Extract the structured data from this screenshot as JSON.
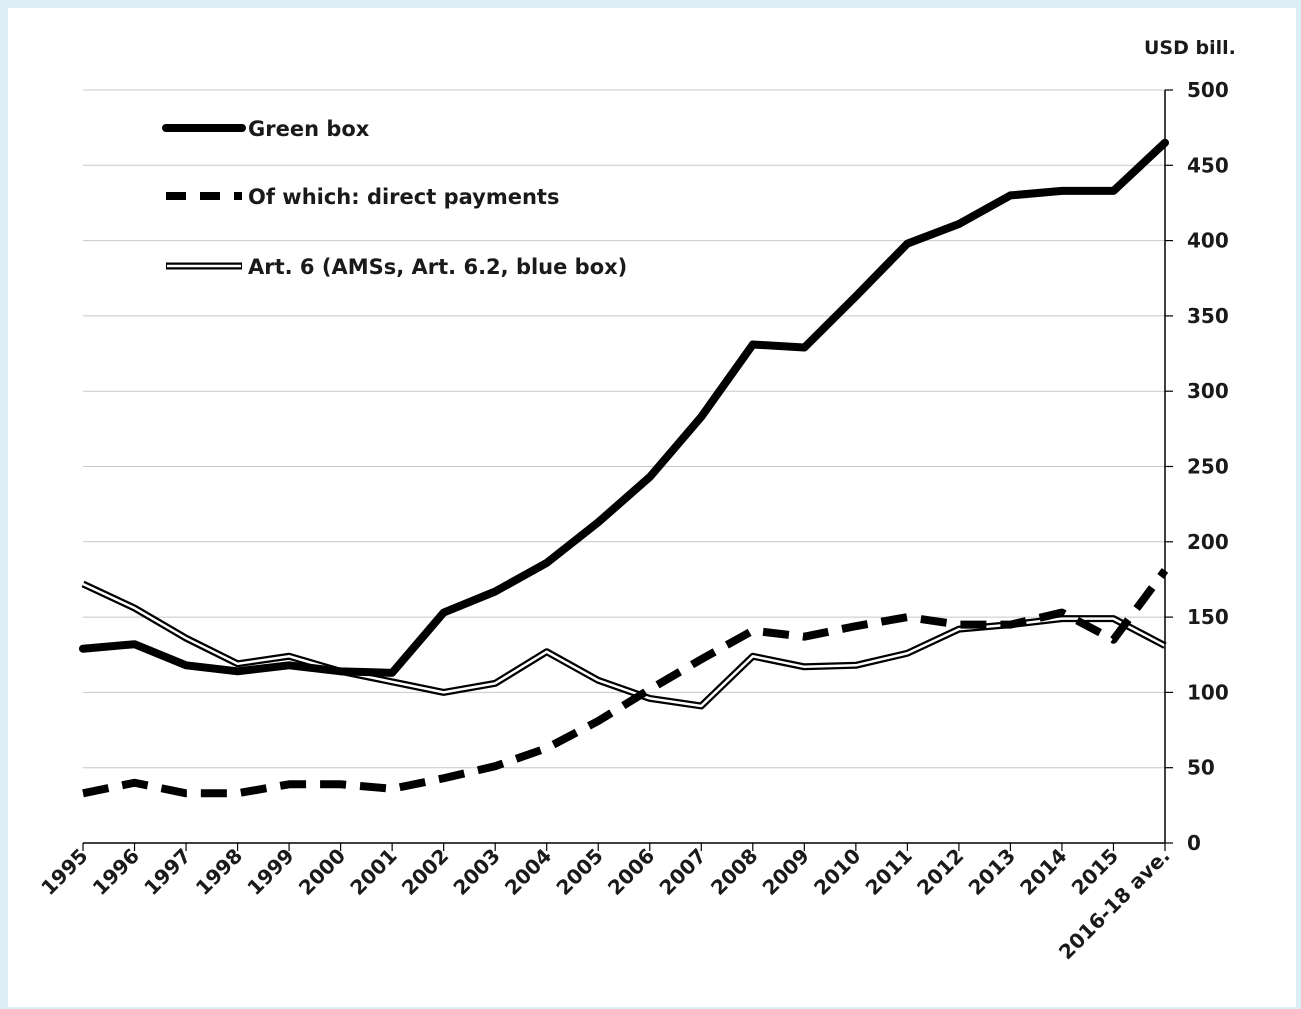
{
  "chart_data": {
    "type": "line",
    "unit_label": "USD bill.",
    "ylim": [
      0,
      500
    ],
    "yticks": [
      0,
      50,
      100,
      150,
      200,
      250,
      300,
      350,
      400,
      450,
      500
    ],
    "grid": true,
    "legend_position": "top-left",
    "categories": [
      "1995",
      "1996",
      "1997",
      "1998",
      "1999",
      "2000",
      "2001",
      "2002",
      "2003",
      "2004",
      "2005",
      "2006",
      "2007",
      "2008",
      "2009",
      "2010",
      "2011",
      "2012",
      "2013",
      "2014",
      "2015",
      "2016-18 ave."
    ],
    "series": [
      {
        "name": "Green box",
        "style": "solid-thick",
        "color": "#000000",
        "values": [
          129,
          132,
          118,
          114,
          118,
          114,
          113,
          153,
          167,
          186,
          213,
          243,
          283,
          331,
          329,
          363,
          398,
          411,
          430,
          433,
          433,
          465
        ]
      },
      {
        "name": "Of which: direct payments",
        "style": "dashed",
        "color": "#000000",
        "values": [
          33,
          40,
          33,
          33,
          39,
          39,
          36,
          43,
          51,
          63,
          81,
          102,
          122,
          141,
          137,
          144,
          150,
          145,
          145,
          153,
          135,
          181
        ]
      },
      {
        "name": "Art. 6 (AMSs, Art. 6.2, blue box)",
        "style": "double",
        "color": "#000000",
        "values": [
          172,
          156,
          136,
          119,
          124,
          114,
          107,
          100,
          106,
          127,
          108,
          96,
          91,
          124,
          117,
          118,
          126,
          142,
          145,
          149,
          149,
          131
        ]
      }
    ]
  }
}
